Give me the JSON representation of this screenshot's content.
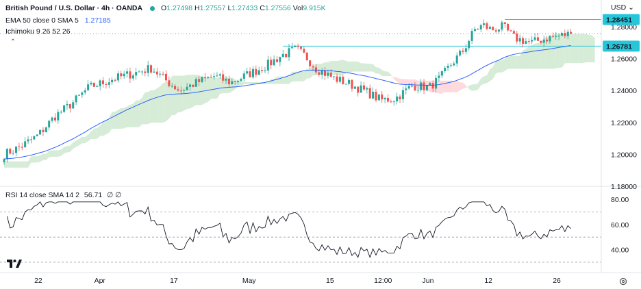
{
  "header": {
    "symbol": "British Pound / U.S. Dollar · 4h · OANDA",
    "ohlc": [
      {
        "key": "O",
        "value": "1.27498"
      },
      {
        "key": "H",
        "value": "1.27557"
      },
      {
        "key": "L",
        "value": "1.27433"
      },
      {
        "key": "C",
        "value": "1.27556"
      }
    ],
    "vol_label": "Vol",
    "vol_value": "9.915K",
    "ema_label": "EMA 50 close 0 SMA 5",
    "ema_value": "1.27185",
    "ichimoku_label": "Ichimoku 9 26 52 26"
  },
  "rsi_header": {
    "label": "RSI 14 close SMA 14 2",
    "value": "56.71",
    "extra": "∅ ∅"
  },
  "currency": "USD",
  "colors": {
    "up": "#26a69a",
    "down": "#ef5350",
    "ema": "#2962ff",
    "cloud_bull": "#c8e6c9",
    "cloud_bear": "#ffcdd2",
    "resistance_line": "#26c6da",
    "rsi": "#131722"
  },
  "chart_data": [
    {
      "type": "candlestick",
      "title": "British Pound / U.S. Dollar · 4h · OANDA",
      "ylim": [
        1.18,
        1.295
      ],
      "y_ticks": [
        "1.28000",
        "1.26000",
        "1.24000",
        "1.22000",
        "1.20000",
        "1.18000"
      ],
      "x_ticks": [
        "22",
        "Apr",
        "17",
        "May",
        "15",
        "12:00",
        "Jun",
        "12",
        "26"
      ],
      "close_path": [
        [
          0,
          1.2
        ],
        [
          0.03,
          1.205
        ],
        [
          0.06,
          1.212
        ],
        [
          0.09,
          1.224
        ],
        [
          0.12,
          1.232
        ],
        [
          0.15,
          1.242
        ],
        [
          0.175,
          1.245
        ],
        [
          0.19,
          1.247
        ],
        [
          0.22,
          1.25
        ],
        [
          0.26,
          1.254
        ],
        [
          0.29,
          1.245
        ],
        [
          0.31,
          1.24
        ],
        [
          0.34,
          1.245
        ],
        [
          0.37,
          1.249
        ],
        [
          0.4,
          1.245
        ],
        [
          0.43,
          1.25
        ],
        [
          0.46,
          1.255
        ],
        [
          0.49,
          1.262
        ],
        [
          0.515,
          1.266
        ],
        [
          0.53,
          1.262
        ],
        [
          0.55,
          1.254
        ],
        [
          0.58,
          1.248
        ],
        [
          0.61,
          1.244
        ],
        [
          0.64,
          1.239
        ],
        [
          0.665,
          1.234
        ],
        [
          0.69,
          1.235
        ],
        [
          0.72,
          1.243
        ],
        [
          0.75,
          1.242
        ],
        [
          0.77,
          1.248
        ],
        [
          0.79,
          1.257
        ],
        [
          0.81,
          1.265
        ],
        [
          0.83,
          1.278
        ],
        [
          0.845,
          1.281
        ],
        [
          0.86,
          1.278
        ],
        [
          0.88,
          1.28
        ],
        [
          0.9,
          1.273
        ],
        [
          0.93,
          1.27
        ],
        [
          0.96,
          1.273
        ],
        [
          1.0,
          1.2756
        ]
      ],
      "overlays": {
        "ema_last": 1.27185,
        "resistance_level": 1.28451,
        "support_level": 1.26781
      },
      "price_labels": [
        {
          "value": 1.28451,
          "text": "1.28451"
        },
        {
          "value": 1.26781,
          "text": "1.26781"
        }
      ]
    },
    {
      "type": "line",
      "title": "RSI 14 close SMA 14 2",
      "ylim": [
        25,
        85
      ],
      "y_ticks": [
        "80.00",
        "60.00",
        "40.00"
      ],
      "levels": [
        70,
        50,
        30
      ],
      "last_value": 56.71
    }
  ]
}
